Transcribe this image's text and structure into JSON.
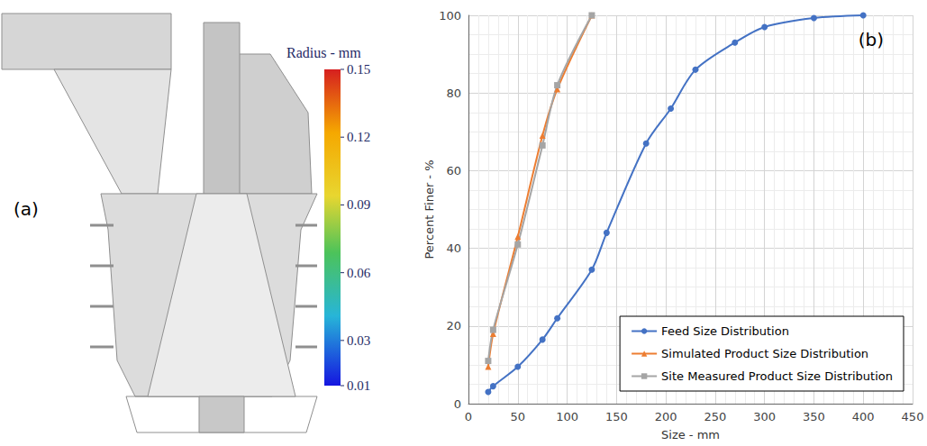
{
  "chart_data": [
    {
      "type": "render",
      "panel_label": "(a)",
      "colorbar": {
        "title": "Radius - mm",
        "range": [
          0.01,
          0.15
        ],
        "ticks": [
          0.15,
          0.12,
          0.09,
          0.06,
          0.03,
          0.01
        ]
      }
    },
    {
      "type": "line",
      "panel_label": "(b)",
      "x_label": "Size - mm",
      "y_label": "Percent Finer - %",
      "xlim": [
        0,
        450
      ],
      "xticks": [
        0,
        50,
        100,
        150,
        200,
        250,
        300,
        350,
        400,
        450
      ],
      "ylim": [
        0,
        100
      ],
      "yticks": [
        0,
        20,
        40,
        60,
        80,
        100
      ],
      "grid": true,
      "legend": "lower right",
      "series": [
        {
          "name": "Feed Size Distribution",
          "color": "#4472c4",
          "marker": "circle",
          "x": [
            20,
            25,
            50,
            75,
            90,
            125,
            140,
            180,
            205,
            230,
            270,
            300,
            350,
            400
          ],
          "values": [
            3,
            4.5,
            9.5,
            16.5,
            22,
            34.5,
            44,
            67,
            76,
            86,
            93,
            97,
            99.3,
            100
          ]
        },
        {
          "name": "Simulated Product Size Distribution",
          "color": "#ed7d31",
          "marker": "triangle",
          "x": [
            20,
            25,
            50,
            75,
            90,
            125
          ],
          "values": [
            9.5,
            18,
            43,
            69,
            81,
            100
          ]
        },
        {
          "name": "Site Measured Product Size Distribution",
          "color": "#a5a5a5",
          "marker": "rect",
          "x": [
            20,
            25,
            50,
            75,
            90,
            125
          ],
          "values": [
            11,
            19,
            41,
            66.5,
            82,
            100
          ]
        }
      ]
    }
  ]
}
